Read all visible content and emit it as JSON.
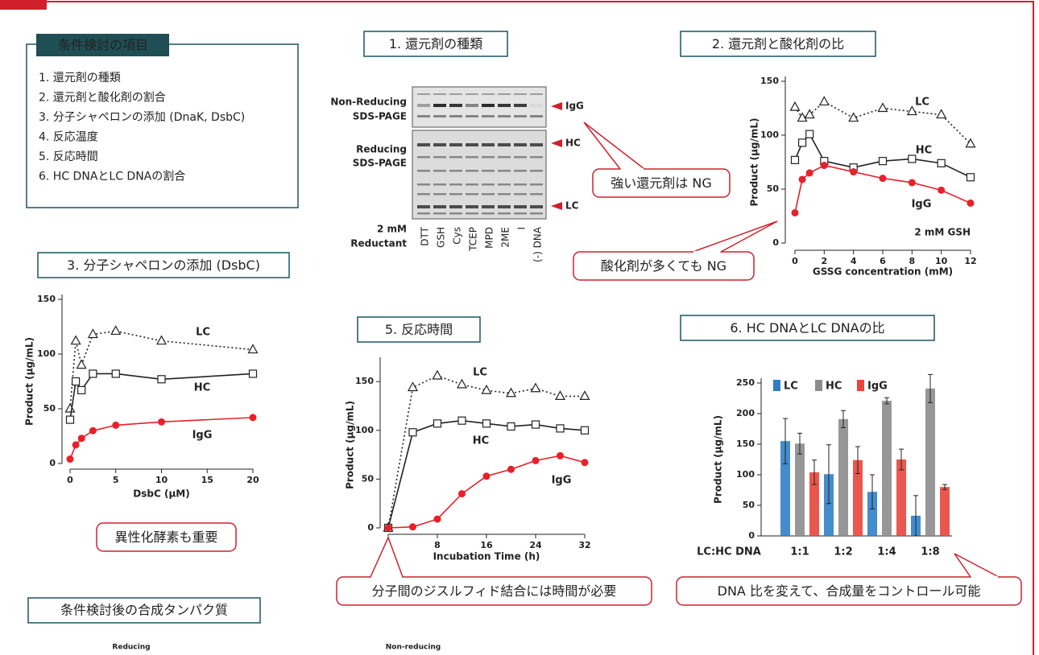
{
  "conditions": {
    "title": "条件検討の項目",
    "items": [
      "1. 還元剤の種類",
      "2. 還元剤と酸化剤の割合",
      "3. 分子シャペロンの添加 (DnaK, DsbC)",
      "4. 反応温度",
      "5. 反応時間",
      "6. HC DNAとLC DNAの割合"
    ]
  },
  "gel": {
    "title": "1. 還元剤の種類",
    "row_labels": [
      [
        "Non-Reducing",
        "SDS-PAGE"
      ],
      [
        "Reducing",
        "SDS-PAGE"
      ],
      [
        "2 mM",
        "Reductant"
      ]
    ],
    "lanes": [
      "DTT",
      "GSH",
      "Cys",
      "TCEP",
      "MPD",
      "2ME",
      "I",
      "(-) DNA"
    ],
    "band_labels": [
      "IgG",
      "HC",
      "LC"
    ]
  },
  "chart_data": [
    {
      "type": "line",
      "title": "2. 還元剤と酸化剤の比",
      "x_label": "GSSG concentration (mM)",
      "y_label": "Product (μg/mL)",
      "annotation": "2 mM GSH",
      "x": [
        0,
        0.5,
        1,
        2,
        4,
        6,
        8,
        10,
        12
      ],
      "series": [
        {
          "name": "LC",
          "color": "#222222",
          "marker": "triangle",
          "dashed": true,
          "values": [
            126,
            116,
            119,
            131,
            116,
            125,
            122,
            119,
            92
          ]
        },
        {
          "name": "HC",
          "color": "#222222",
          "marker": "square",
          "dashed": false,
          "values": [
            77,
            93,
            101,
            76,
            70,
            76,
            78,
            74,
            61
          ]
        },
        {
          "name": "IgG",
          "color": "#e8202a",
          "marker": "circle",
          "dashed": false,
          "values": [
            28,
            59,
            65,
            72,
            66,
            60,
            56,
            49,
            37
          ]
        }
      ],
      "xlim": [
        0,
        12
      ],
      "xticks": [
        0,
        2,
        4,
        6,
        8,
        10,
        12
      ],
      "ylim": [
        0,
        150
      ],
      "yticks": [
        0,
        50,
        100,
        150
      ]
    },
    {
      "type": "line",
      "title": "3. 分子シャペロンの添加 (DsbC)",
      "x_label": "DsbC (μM)",
      "y_label": "Product (μg/mL)",
      "x": [
        0,
        0.625,
        1.25,
        2.5,
        5,
        10,
        20
      ],
      "series": [
        {
          "name": "LC",
          "color": "#222222",
          "marker": "triangle",
          "dashed": true,
          "values": [
            50,
            112,
            90,
            118,
            121,
            112,
            104
          ]
        },
        {
          "name": "HC",
          "color": "#222222",
          "marker": "square",
          "dashed": false,
          "values": [
            40,
            75,
            67,
            82,
            82,
            77,
            82
          ]
        },
        {
          "name": "IgG",
          "color": "#e8202a",
          "marker": "circle",
          "dashed": false,
          "values": [
            4,
            17,
            23,
            30,
            35,
            38,
            42
          ]
        }
      ],
      "xlim": [
        0,
        20
      ],
      "xticks": [
        0,
        5,
        10,
        15,
        20
      ],
      "ylim": [
        0,
        150
      ],
      "yticks": [
        0,
        50,
        100,
        150
      ]
    },
    {
      "type": "line",
      "title": "5. 反応時間",
      "x_label": "Incubation Time (h)",
      "y_label": "Product (μg/mL)",
      "x": [
        0,
        4,
        8,
        12,
        16,
        20,
        24,
        28,
        32
      ],
      "series": [
        {
          "name": "LC",
          "color": "#222222",
          "marker": "triangle",
          "dashed": true,
          "values": [
            0,
            144,
            156,
            147,
            141,
            138,
            143,
            135,
            135
          ]
        },
        {
          "name": "HC",
          "color": "#222222",
          "marker": "square",
          "dashed": false,
          "values": [
            0,
            98,
            107,
            110,
            107,
            104,
            106,
            102,
            100
          ]
        },
        {
          "name": "IgG",
          "color": "#e8202a",
          "marker": "circle",
          "dashed": false,
          "values": [
            0,
            1,
            9,
            35,
            53,
            60,
            69,
            74,
            67
          ]
        }
      ],
      "xlim": [
        0,
        32
      ],
      "xticks": [
        0,
        8,
        16,
        24,
        32
      ],
      "ylim": [
        0,
        170
      ],
      "yticks": [
        0,
        50,
        100,
        150
      ]
    },
    {
      "type": "bar",
      "title": "6. HC DNAとLC DNAの比",
      "x_label": "LC:HC DNA",
      "y_label": "Product (μg/mL)",
      "categories": [
        "1:1",
        "1:2",
        "1:4",
        "1:8"
      ],
      "series": [
        {
          "name": "LC",
          "color": "#2f7fc8",
          "values": [
            155,
            101,
            72,
            33
          ],
          "errors": [
            37,
            48,
            28,
            33
          ]
        },
        {
          "name": "HC",
          "color": "#8c8c8c",
          "values": [
            151,
            191,
            221,
            241
          ],
          "errors": [
            17,
            14,
            5,
            23
          ]
        },
        {
          "name": "IgG",
          "color": "#e8453c",
          "values": [
            104,
            124,
            125,
            80
          ],
          "errors": [
            20,
            22,
            17,
            4
          ]
        }
      ],
      "ylim": [
        0,
        250
      ],
      "yticks": [
        0,
        50,
        100,
        150,
        200,
        250
      ]
    }
  ],
  "callouts": [
    "強い還元剤は NG",
    "酸化剤が多くても NG",
    "異性化酵素も重要",
    "分子間のジスルフィド結合には時間が必要",
    "DNA 比を変えて、合成量をコントロール可能"
  ],
  "final": {
    "title": "条件検討後の合成タンパク質",
    "panels": [
      "Reducing",
      "Non-reducing"
    ]
  }
}
